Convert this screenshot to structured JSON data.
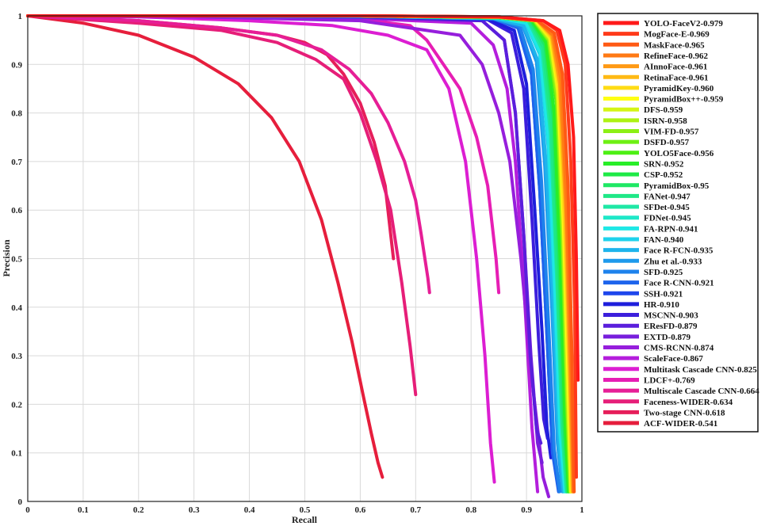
{
  "chart_data": {
    "type": "line",
    "title": "",
    "xlabel": "Recall",
    "ylabel": "Precision",
    "xlim": [
      0,
      1
    ],
    "ylim": [
      0,
      1
    ],
    "xticks": [
      "0",
      "0.1",
      "0.2",
      "0.3",
      "0.4",
      "0.5",
      "0.6",
      "0.7",
      "0.8",
      "0.9",
      "1"
    ],
    "yticks": [
      "0",
      "0.1",
      "0.2",
      "0.3",
      "0.4",
      "0.5",
      "0.6",
      "0.7",
      "0.8",
      "0.9",
      "1"
    ],
    "grid": true,
    "legend_position": "right",
    "series": [
      {
        "name": "YOLO-FaceV2-0.979",
        "color": "#ff1a1a",
        "x": [
          0.0,
          0.3,
          0.6,
          0.85,
          0.93,
          0.96,
          0.975,
          0.985,
          0.99,
          0.993
        ],
        "y": [
          1.0,
          1.0,
          1.0,
          0.998,
          0.99,
          0.97,
          0.9,
          0.75,
          0.5,
          0.25
        ]
      },
      {
        "name": "MogFace-E-0.969",
        "color": "#ff3a1a",
        "x": [
          0.0,
          0.3,
          0.6,
          0.85,
          0.93,
          0.955,
          0.97,
          0.98,
          0.987,
          0.99
        ],
        "y": [
          1.0,
          1.0,
          1.0,
          0.998,
          0.99,
          0.97,
          0.9,
          0.7,
          0.4,
          0.05
        ]
      },
      {
        "name": "MaskFace-0.965",
        "color": "#ff5a14",
        "x": [
          0.0,
          0.3,
          0.6,
          0.85,
          0.92,
          0.95,
          0.965,
          0.975,
          0.982,
          0.986
        ],
        "y": [
          1.0,
          1.0,
          1.0,
          0.998,
          0.99,
          0.965,
          0.88,
          0.65,
          0.3,
          0.02
        ]
      },
      {
        "name": "RefineFace-0.962",
        "color": "#ff7a14",
        "x": [
          0.0,
          0.3,
          0.6,
          0.85,
          0.92,
          0.948,
          0.962,
          0.972,
          0.98,
          0.985
        ],
        "y": [
          1.0,
          1.0,
          1.0,
          0.998,
          0.99,
          0.96,
          0.87,
          0.62,
          0.28,
          0.02
        ]
      },
      {
        "name": "AInnoFace-0.961",
        "color": "#ff9a14",
        "x": [
          0.0,
          0.3,
          0.6,
          0.85,
          0.92,
          0.946,
          0.96,
          0.971,
          0.979,
          0.984
        ],
        "y": [
          1.0,
          1.0,
          1.0,
          0.997,
          0.99,
          0.96,
          0.86,
          0.6,
          0.26,
          0.02
        ]
      },
      {
        "name": "RetinaFace-0.961",
        "color": "#ffba14",
        "x": [
          0.0,
          0.3,
          0.6,
          0.85,
          0.92,
          0.945,
          0.96,
          0.97,
          0.978,
          0.983
        ],
        "y": [
          1.0,
          1.0,
          1.0,
          0.997,
          0.99,
          0.958,
          0.86,
          0.6,
          0.25,
          0.02
        ]
      },
      {
        "name": "PyramidKey-0.960",
        "color": "#ffdc14",
        "x": [
          0.0,
          0.3,
          0.6,
          0.85,
          0.918,
          0.944,
          0.958,
          0.968,
          0.977,
          0.982
        ],
        "y": [
          1.0,
          1.0,
          1.0,
          0.997,
          0.99,
          0.955,
          0.85,
          0.58,
          0.24,
          0.02
        ]
      },
      {
        "name": "PyramidBox++-0.959",
        "color": "#ffff14",
        "x": [
          0.0,
          0.3,
          0.6,
          0.85,
          0.917,
          0.943,
          0.957,
          0.967,
          0.976,
          0.981
        ],
        "y": [
          1.0,
          1.0,
          1.0,
          0.997,
          0.99,
          0.955,
          0.85,
          0.57,
          0.23,
          0.02
        ]
      },
      {
        "name": "DFS-0.959",
        "color": "#d4f514",
        "x": [
          0.0,
          0.3,
          0.6,
          0.85,
          0.916,
          0.942,
          0.957,
          0.967,
          0.975,
          0.98
        ],
        "y": [
          1.0,
          1.0,
          1.0,
          0.997,
          0.99,
          0.953,
          0.84,
          0.56,
          0.22,
          0.02
        ]
      },
      {
        "name": "ISRN-0.958",
        "color": "#aef214",
        "x": [
          0.0,
          0.3,
          0.6,
          0.85,
          0.915,
          0.941,
          0.956,
          0.966,
          0.974,
          0.98
        ],
        "y": [
          1.0,
          1.0,
          1.0,
          0.997,
          0.99,
          0.952,
          0.84,
          0.55,
          0.22,
          0.02
        ]
      },
      {
        "name": "VIM-FD-0.957",
        "color": "#8cf014",
        "x": [
          0.0,
          0.3,
          0.6,
          0.85,
          0.914,
          0.94,
          0.955,
          0.965,
          0.973,
          0.979
        ],
        "y": [
          1.0,
          1.0,
          1.0,
          0.997,
          0.99,
          0.95,
          0.83,
          0.54,
          0.21,
          0.02
        ]
      },
      {
        "name": "DSFD-0.957",
        "color": "#6ef014",
        "x": [
          0.0,
          0.3,
          0.6,
          0.85,
          0.914,
          0.94,
          0.955,
          0.965,
          0.973,
          0.979
        ],
        "y": [
          1.0,
          1.0,
          1.0,
          0.997,
          0.99,
          0.95,
          0.83,
          0.54,
          0.21,
          0.02
        ]
      },
      {
        "name": "YOLO5Face-0.956",
        "color": "#4ef014",
        "x": [
          0.0,
          0.3,
          0.6,
          0.85,
          0.913,
          0.939,
          0.954,
          0.964,
          0.972,
          0.978
        ],
        "y": [
          1.0,
          1.0,
          1.0,
          0.997,
          0.99,
          0.948,
          0.82,
          0.53,
          0.2,
          0.02
        ]
      },
      {
        "name": "SRN-0.952",
        "color": "#28ee28",
        "x": [
          0.0,
          0.3,
          0.6,
          0.85,
          0.91,
          0.935,
          0.95,
          0.961,
          0.969,
          0.976
        ],
        "y": [
          1.0,
          1.0,
          1.0,
          0.997,
          0.99,
          0.945,
          0.8,
          0.5,
          0.18,
          0.02
        ]
      },
      {
        "name": "CSP-0.952",
        "color": "#1eea46",
        "x": [
          0.0,
          0.3,
          0.6,
          0.85,
          0.91,
          0.935,
          0.95,
          0.961,
          0.969,
          0.976
        ],
        "y": [
          1.0,
          1.0,
          1.0,
          0.996,
          0.99,
          0.945,
          0.8,
          0.5,
          0.18,
          0.02
        ]
      },
      {
        "name": "PyramidBox-0.95",
        "color": "#1ee864",
        "x": [
          0.0,
          0.3,
          0.6,
          0.85,
          0.908,
          0.933,
          0.948,
          0.959,
          0.967,
          0.975
        ],
        "y": [
          1.0,
          1.0,
          1.0,
          0.996,
          0.99,
          0.94,
          0.79,
          0.48,
          0.17,
          0.02
        ]
      },
      {
        "name": "FANet-0.947",
        "color": "#1ee887",
        "x": [
          0.0,
          0.3,
          0.6,
          0.85,
          0.905,
          0.93,
          0.945,
          0.956,
          0.965,
          0.973
        ],
        "y": [
          1.0,
          1.0,
          1.0,
          0.996,
          0.99,
          0.935,
          0.77,
          0.46,
          0.16,
          0.02
        ]
      },
      {
        "name": "SFDet-0.945",
        "color": "#1ee8a5",
        "x": [
          0.0,
          0.3,
          0.6,
          0.85,
          0.903,
          0.928,
          0.943,
          0.955,
          0.964,
          0.972
        ],
        "y": [
          1.0,
          1.0,
          1.0,
          0.996,
          0.99,
          0.93,
          0.76,
          0.45,
          0.15,
          0.02
        ]
      },
      {
        "name": "FDNet-0.945",
        "color": "#1ee8c8",
        "x": [
          0.0,
          0.3,
          0.6,
          0.85,
          0.903,
          0.928,
          0.943,
          0.955,
          0.964,
          0.972
        ],
        "y": [
          1.0,
          1.0,
          1.0,
          0.996,
          0.99,
          0.93,
          0.76,
          0.45,
          0.15,
          0.02
        ]
      },
      {
        "name": "FA-RPN-0.941",
        "color": "#1ee8e6",
        "x": [
          0.0,
          0.3,
          0.6,
          0.85,
          0.9,
          0.925,
          0.94,
          0.952,
          0.961,
          0.97
        ],
        "y": [
          1.0,
          1.0,
          1.0,
          0.995,
          0.985,
          0.925,
          0.74,
          0.43,
          0.14,
          0.02
        ]
      },
      {
        "name": "FAN-0.940",
        "color": "#1ed2ec",
        "x": [
          0.0,
          0.3,
          0.6,
          0.85,
          0.899,
          0.924,
          0.939,
          0.951,
          0.96,
          0.969
        ],
        "y": [
          1.0,
          1.0,
          1.0,
          0.995,
          0.985,
          0.92,
          0.73,
          0.42,
          0.14,
          0.02
        ]
      },
      {
        "name": "Face R-FCN-0.935",
        "color": "#1eb4ec",
        "x": [
          0.0,
          0.3,
          0.6,
          0.84,
          0.895,
          0.92,
          0.935,
          0.948,
          0.958,
          0.967
        ],
        "y": [
          1.0,
          1.0,
          0.999,
          0.995,
          0.98,
          0.91,
          0.7,
          0.4,
          0.12,
          0.02
        ]
      },
      {
        "name": "Zhu et al.-0.933",
        "color": "#1e9aec",
        "x": [
          0.0,
          0.3,
          0.6,
          0.84,
          0.893,
          0.918,
          0.933,
          0.946,
          0.956,
          0.965
        ],
        "y": [
          1.0,
          1.0,
          0.999,
          0.995,
          0.98,
          0.905,
          0.69,
          0.39,
          0.12,
          0.02
        ]
      },
      {
        "name": "SFD-0.925",
        "color": "#1e82ec",
        "x": [
          0.0,
          0.3,
          0.6,
          0.84,
          0.888,
          0.912,
          0.927,
          0.94,
          0.95,
          0.96
        ],
        "y": [
          1.0,
          1.0,
          0.999,
          0.994,
          0.978,
          0.89,
          0.66,
          0.36,
          0.11,
          0.02
        ]
      },
      {
        "name": "Face R-CNN-0.921",
        "color": "#1e64ec",
        "x": [
          0.0,
          0.3,
          0.6,
          0.84,
          0.885,
          0.909,
          0.924,
          0.937,
          0.947,
          0.958
        ],
        "y": [
          1.0,
          1.0,
          0.999,
          0.994,
          0.975,
          0.88,
          0.64,
          0.34,
          0.1,
          0.02
        ]
      },
      {
        "name": "SSH-0.921",
        "color": "#1e46ec",
        "x": [
          0.0,
          0.3,
          0.6,
          0.84,
          0.885,
          0.909,
          0.924,
          0.937,
          0.947,
          0.957
        ],
        "y": [
          1.0,
          1.0,
          0.999,
          0.994,
          0.975,
          0.88,
          0.64,
          0.34,
          0.1,
          0.05
        ]
      },
      {
        "name": "HR-0.910",
        "color": "#1e1edc",
        "x": [
          0.0,
          0.3,
          0.6,
          0.83,
          0.878,
          0.9,
          0.915,
          0.928,
          0.937,
          0.944
        ],
        "y": [
          1.0,
          1.0,
          0.999,
          0.993,
          0.97,
          0.86,
          0.6,
          0.35,
          0.15,
          0.09
        ]
      },
      {
        "name": "MSCNN-0.903",
        "color": "#3c1edc",
        "x": [
          0.0,
          0.3,
          0.6,
          0.83,
          0.873,
          0.895,
          0.91,
          0.922,
          0.931,
          0.938
        ],
        "y": [
          1.0,
          1.0,
          0.998,
          0.992,
          0.965,
          0.85,
          0.58,
          0.33,
          0.17,
          0.13
        ]
      },
      {
        "name": "EResFD-0.879",
        "color": "#5a1edc",
        "x": [
          0.0,
          0.3,
          0.6,
          0.82,
          0.86,
          0.88,
          0.895,
          0.907,
          0.918,
          0.926
        ],
        "y": [
          1.0,
          1.0,
          0.997,
          0.99,
          0.95,
          0.8,
          0.55,
          0.3,
          0.15,
          0.12
        ]
      },
      {
        "name": "EXTD-0.879",
        "color": "#781edc",
        "x": [
          0.0,
          0.3,
          0.6,
          0.82,
          0.86,
          0.88,
          0.895,
          0.908,
          0.92,
          0.928
        ],
        "y": [
          1.0,
          1.0,
          0.997,
          0.99,
          0.95,
          0.8,
          0.55,
          0.3,
          0.12,
          0.08
        ]
      },
      {
        "name": "CMS-RCNN-0.874",
        "color": "#961edc",
        "x": [
          0.0,
          0.3,
          0.6,
          0.78,
          0.82,
          0.85,
          0.87,
          0.89,
          0.91,
          0.93,
          0.94
        ],
        "y": [
          1.0,
          0.998,
          0.99,
          0.96,
          0.9,
          0.8,
          0.7,
          0.5,
          0.25,
          0.05,
          0.01
        ]
      },
      {
        "name": "ScaleFace-0.867",
        "color": "#b41edc",
        "x": [
          0.0,
          0.3,
          0.6,
          0.8,
          0.84,
          0.865,
          0.88,
          0.895,
          0.91,
          0.92
        ],
        "y": [
          1.0,
          0.998,
          0.995,
          0.985,
          0.94,
          0.85,
          0.7,
          0.45,
          0.15,
          0.02
        ]
      },
      {
        "name": "Multitask Cascade CNN-0.825",
        "color": "#dc1ed2",
        "x": [
          0.0,
          0.2,
          0.4,
          0.55,
          0.65,
          0.72,
          0.76,
          0.79,
          0.81,
          0.825,
          0.835,
          0.842
        ],
        "y": [
          1.0,
          0.998,
          0.99,
          0.98,
          0.96,
          0.93,
          0.85,
          0.7,
          0.5,
          0.3,
          0.12,
          0.04
        ]
      },
      {
        "name": "LDCF+-0.769",
        "color": "#e61eb4",
        "x": [
          0.0,
          0.3,
          0.5,
          0.62,
          0.69,
          0.72,
          0.75,
          0.78,
          0.81,
          0.83,
          0.845,
          0.85
        ],
        "y": [
          1.0,
          0.998,
          0.995,
          0.99,
          0.98,
          0.95,
          0.9,
          0.85,
          0.75,
          0.65,
          0.5,
          0.43
        ]
      },
      {
        "name": "Multiscale Cascade CNN-0.664",
        "color": "#e61e96",
        "x": [
          0.0,
          0.2,
          0.35,
          0.45,
          0.53,
          0.58,
          0.62,
          0.65,
          0.68,
          0.7,
          0.71,
          0.722,
          0.725
        ],
        "y": [
          1.0,
          0.99,
          0.975,
          0.96,
          0.93,
          0.89,
          0.84,
          0.78,
          0.7,
          0.62,
          0.55,
          0.46,
          0.43
        ]
      },
      {
        "name": "Faceness-WIDER-0.634",
        "color": "#e61e78",
        "x": [
          0.0,
          0.2,
          0.35,
          0.45,
          0.52,
          0.57,
          0.6,
          0.63,
          0.655,
          0.675,
          0.69,
          0.7
        ],
        "y": [
          1.0,
          0.985,
          0.97,
          0.945,
          0.91,
          0.87,
          0.8,
          0.7,
          0.6,
          0.45,
          0.32,
          0.22
        ]
      },
      {
        "name": "Two-stage CNN-0.618",
        "color": "#e61e5a",
        "x": [
          0.0,
          0.2,
          0.35,
          0.45,
          0.5,
          0.54,
          0.57,
          0.6,
          0.625,
          0.645,
          0.655,
          0.66
        ],
        "y": [
          1.0,
          0.99,
          0.975,
          0.96,
          0.945,
          0.92,
          0.88,
          0.82,
          0.74,
          0.65,
          0.55,
          0.5
        ]
      },
      {
        "name": "ACF-WIDER-0.541",
        "color": "#e61e3c",
        "x": [
          0.0,
          0.1,
          0.2,
          0.3,
          0.38,
          0.44,
          0.49,
          0.53,
          0.56,
          0.585,
          0.605,
          0.62,
          0.632,
          0.64
        ],
        "y": [
          1.0,
          0.985,
          0.96,
          0.915,
          0.86,
          0.79,
          0.7,
          0.58,
          0.45,
          0.33,
          0.22,
          0.14,
          0.08,
          0.05
        ]
      }
    ]
  }
}
